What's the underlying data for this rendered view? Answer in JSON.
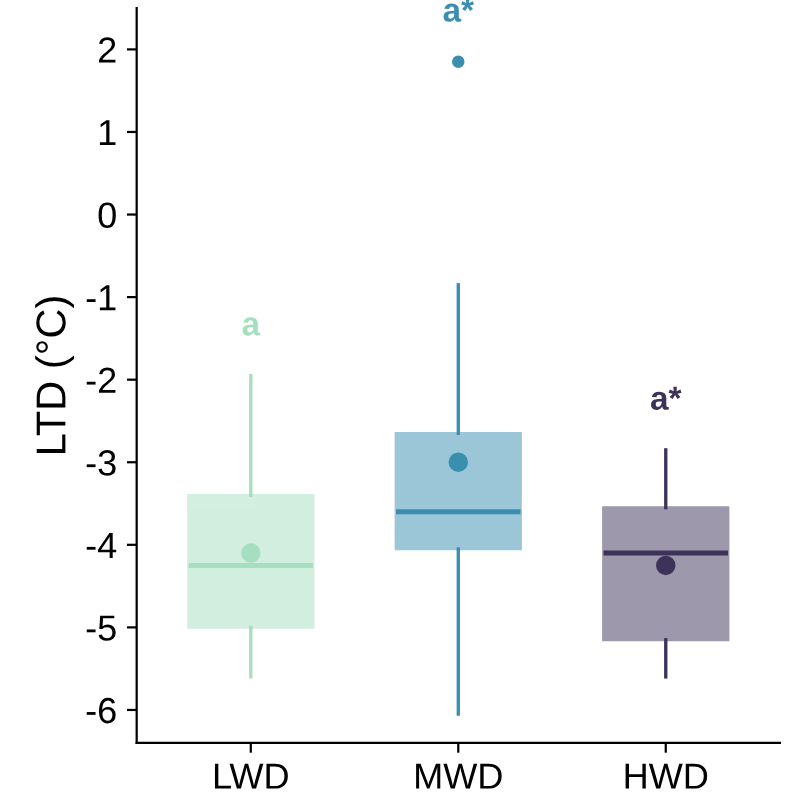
{
  "chart_data": {
    "type": "box",
    "ylabel": "LTD (°C)",
    "categories": [
      "LWD",
      "MWD",
      "HWD"
    ],
    "colors": [
      "#a6dfbf",
      "#3a8fb0",
      "#3d3359"
    ],
    "boxes": [
      {
        "low": -5.6,
        "q1": -5.0,
        "median": -4.25,
        "q3": -3.4,
        "high": -1.95,
        "mean": -4.1
      },
      {
        "low": -6.05,
        "q1": -4.05,
        "median": -3.6,
        "q3": -2.65,
        "high": -0.85,
        "mean": -3.0,
        "outliers": [
          1.85
        ]
      },
      {
        "low": -5.6,
        "q1": -5.15,
        "median": -4.1,
        "q3": -3.55,
        "high": -2.85,
        "mean": -4.25
      }
    ],
    "annotations": [
      "a",
      "a*",
      "a*"
    ],
    "ylim": [
      -6.4,
      2.5
    ],
    "yticks": [
      -6,
      -5,
      -4,
      -3,
      -2,
      -1,
      0,
      1,
      2
    ],
    "grid": false
  }
}
